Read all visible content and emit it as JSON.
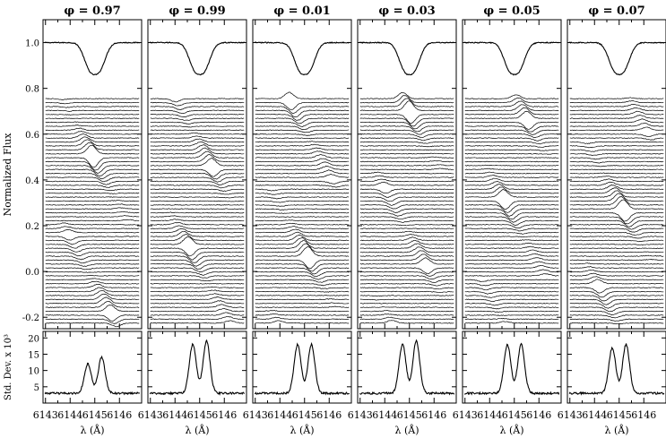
{
  "chart_data": {
    "type": "line",
    "ylabel_top": "Normalized Flux",
    "ylabel_bottom": "Std. Dev. x 10³",
    "xlabel": "λ (Å)",
    "x_ticks": [
      "6143",
      "6144",
      "6145",
      "6146"
    ],
    "top_yticks": [
      "1.0",
      "0.8",
      "0.6",
      "0.4",
      "0.2",
      "0.0",
      "-0.2"
    ],
    "bottom_yticks": [
      "20",
      "15",
      "10",
      "5"
    ],
    "xlim": [
      6142.9,
      6146.9
    ],
    "top_ylim": [
      -0.25,
      1.1
    ],
    "bottom_ylim": [
      0,
      22
    ],
    "panels": [
      {
        "phase_label": "φ = 0.97",
        "mean_profile_depth": 0.14,
        "std_peaks": [
          12,
          14
        ]
      },
      {
        "phase_label": "φ = 0.99",
        "mean_profile_depth": 0.14,
        "std_peaks": [
          18,
          19
        ]
      },
      {
        "phase_label": "φ = 0.01",
        "mean_profile_depth": 0.14,
        "std_peaks": [
          18,
          18
        ]
      },
      {
        "phase_label": "φ = 0.03",
        "mean_profile_depth": 0.14,
        "std_peaks": [
          18,
          19
        ]
      },
      {
        "phase_label": "φ = 0.05",
        "mean_profile_depth": 0.14,
        "std_peaks": [
          18,
          18
        ]
      },
      {
        "phase_label": "φ = 0.07",
        "mean_profile_depth": 0.14,
        "std_peaks": [
          17,
          18
        ]
      }
    ]
  }
}
